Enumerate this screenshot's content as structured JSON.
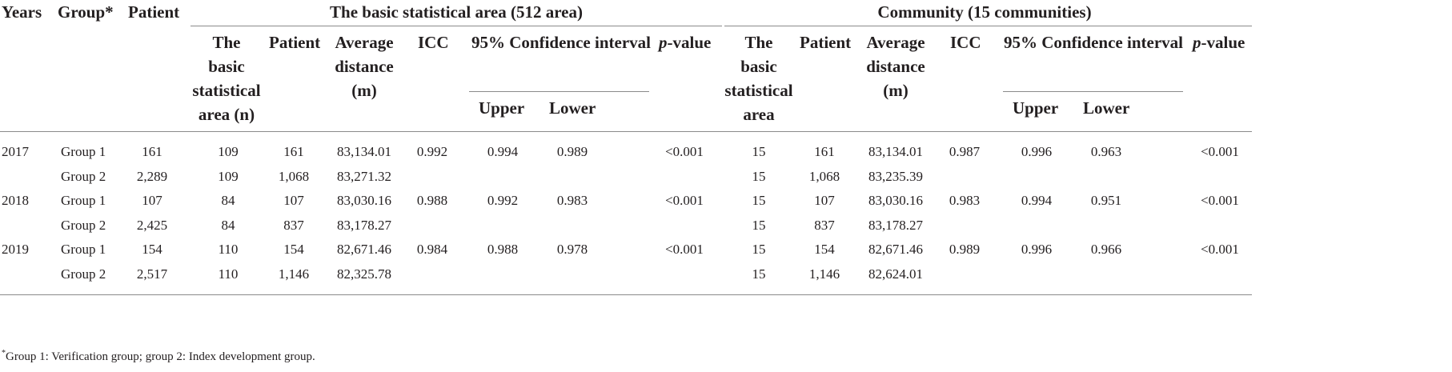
{
  "header": {
    "years": "Years",
    "group": "Group*",
    "patient": "Patient",
    "basic_area_title": "The basic statistical area (512 area)",
    "community_title": "Community (15 communities)",
    "basic_area": {
      "n_col": [
        "The",
        "basic",
        "statistical",
        "area (n)"
      ],
      "patient": "Patient",
      "avg_distance": [
        "Average",
        "distance",
        "(m)"
      ],
      "icc": "ICC",
      "ci": "95% Confidence interval",
      "p_italic": "p",
      "p_rest": "-value",
      "upper": "Upper",
      "lower": "Lower"
    },
    "community": {
      "n_col": [
        "The",
        "basic",
        "statistical",
        "area"
      ],
      "patient": "Patient",
      "avg_distance": [
        "Average",
        "distance",
        "(m)"
      ],
      "icc": "ICC",
      "ci": "95% Confidence interval",
      "p_italic": "p",
      "p_rest": "-value",
      "upper": "Upper",
      "lower": "Lower"
    }
  },
  "rows": [
    {
      "year": "2017",
      "group": "Group 1",
      "patient": "161",
      "ba_n": "109",
      "ba_patient": "161",
      "ba_dist": "83,134.01",
      "ba_icc": "0.992",
      "ba_upper": "0.994",
      "ba_lower": "0.989",
      "ba_p": "<0.001",
      "co_n": "15",
      "co_patient": "161",
      "co_dist": "83,134.01",
      "co_icc": "0.987",
      "co_upper": "0.996",
      "co_lower": "0.963",
      "co_p": "<0.001"
    },
    {
      "year": "",
      "group": "Group 2",
      "patient": "2,289",
      "ba_n": "109",
      "ba_patient": "1,068",
      "ba_dist": "83,271.32",
      "ba_icc": "",
      "ba_upper": "",
      "ba_lower": "",
      "ba_p": "",
      "co_n": "15",
      "co_patient": "1,068",
      "co_dist": "83,235.39",
      "co_icc": "",
      "co_upper": "",
      "co_lower": "",
      "co_p": ""
    },
    {
      "year": "2018",
      "group": "Group 1",
      "patient": "107",
      "ba_n": "84",
      "ba_patient": "107",
      "ba_dist": "83,030.16",
      "ba_icc": "0.988",
      "ba_upper": "0.992",
      "ba_lower": "0.983",
      "ba_p": "<0.001",
      "co_n": "15",
      "co_patient": "107",
      "co_dist": "83,030.16",
      "co_icc": "0.983",
      "co_upper": "0.994",
      "co_lower": "0.951",
      "co_p": "<0.001"
    },
    {
      "year": "",
      "group": "Group 2",
      "patient": "2,425",
      "ba_n": "84",
      "ba_patient": "837",
      "ba_dist": "83,178.27",
      "ba_icc": "",
      "ba_upper": "",
      "ba_lower": "",
      "ba_p": "",
      "co_n": "15",
      "co_patient": "837",
      "co_dist": "83,178.27",
      "co_icc": "",
      "co_upper": "",
      "co_lower": "",
      "co_p": ""
    },
    {
      "year": "2019",
      "group": "Group 1",
      "patient": "154",
      "ba_n": "110",
      "ba_patient": "154",
      "ba_dist": "82,671.46",
      "ba_icc": "0.984",
      "ba_upper": "0.988",
      "ba_lower": "0.978",
      "ba_p": "<0.001",
      "co_n": "15",
      "co_patient": "154",
      "co_dist": "82,671.46",
      "co_icc": "0.989",
      "co_upper": "0.996",
      "co_lower": "0.966",
      "co_p": "<0.001"
    },
    {
      "year": "",
      "group": "Group 2",
      "patient": "2,517",
      "ba_n": "110",
      "ba_patient": "1,146",
      "ba_dist": "82,325.78",
      "ba_icc": "",
      "ba_upper": "",
      "ba_lower": "",
      "ba_p": "",
      "co_n": "15",
      "co_patient": "1,146",
      "co_dist": "82,624.01",
      "co_icc": "",
      "co_upper": "",
      "co_lower": "",
      "co_p": ""
    }
  ],
  "footnote": {
    "marker": "*",
    "text": "Group 1: Verification group; group 2: Index development group."
  }
}
